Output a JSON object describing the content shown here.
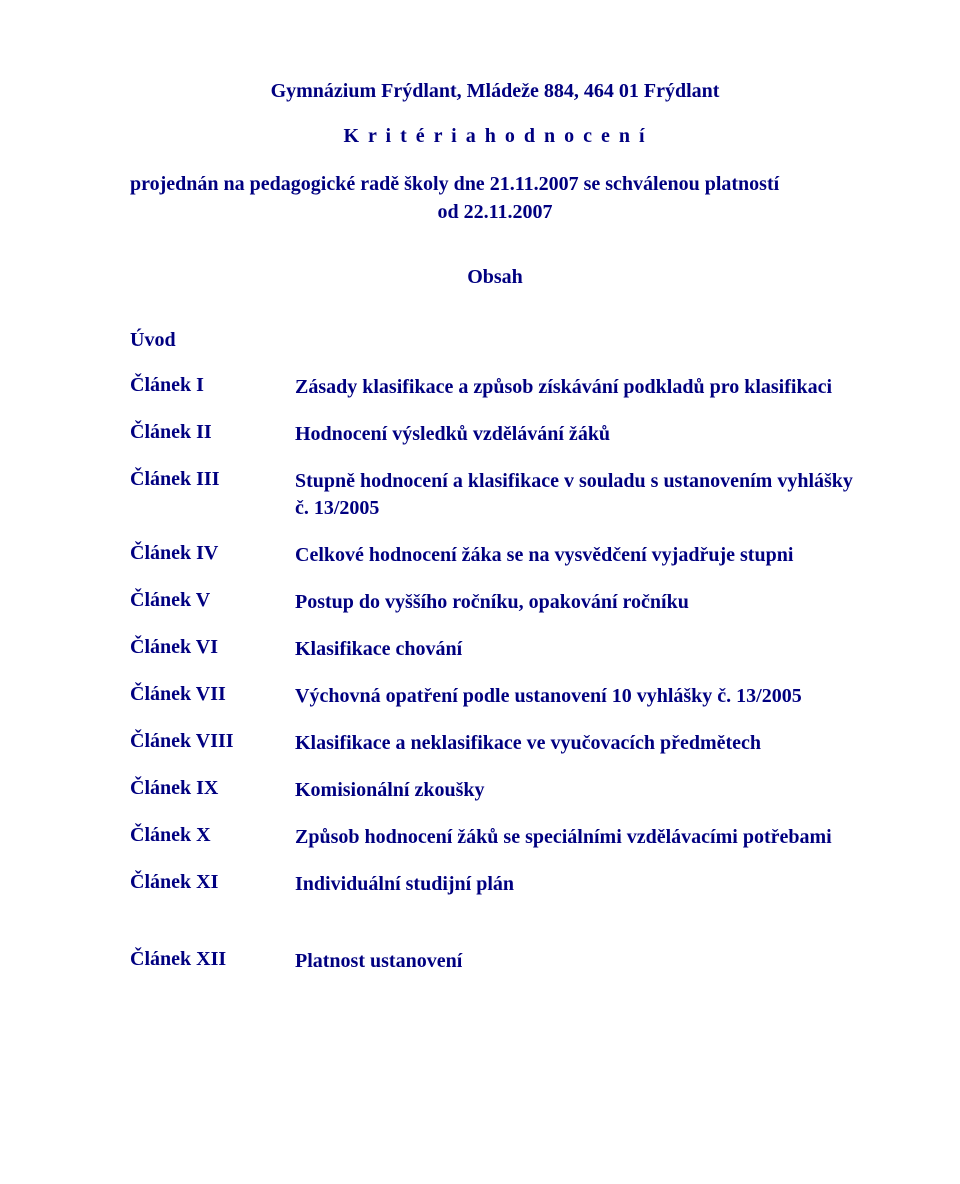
{
  "header": {
    "org_name": "Gymnázium Frýdlant, Mládeže 884, 464 01 Frýdlant",
    "doc_title": "K r i t é r i a   h o d n o c e n í",
    "approval_text": "projednán na pedagogické radě školy dne  21.11.2007  se schválenou platností",
    "approval_text2": "od 22.11.2007"
  },
  "obsah_label": "Obsah",
  "toc": {
    "uvod": "Úvod",
    "items": [
      {
        "label": "Článek I",
        "desc": "Zásady klasifikace a způsob získávání podkladů pro klasifikaci"
      },
      {
        "label": "Článek II",
        "desc": "Hodnocení výsledků vzdělávání žáků"
      },
      {
        "label": "Článek III",
        "desc": "Stupně hodnocení a klasifikace  v souladu s ustanovením  vyhlášky č. 13/2005"
      },
      {
        "label": "Článek IV",
        "desc": "Celkové hodnocení žáka se na vysvědčení vyjadřuje stupni"
      },
      {
        "label": "Článek V",
        "desc": "Postup do vyššího ročníku, opakování ročníku"
      },
      {
        "label": "Článek VI",
        "desc": "Klasifikace chování"
      },
      {
        "label": "Článek VII",
        "desc": "Výchovná opatření podle ustanovení 10 vyhlášky č. 13/2005"
      },
      {
        "label": "Článek VIII",
        "desc": "Klasifikace a neklasifikace ve vyučovacích předmětech"
      },
      {
        "label": "Článek IX",
        "desc": "Komisionální zkoušky"
      },
      {
        "label": "Článek X",
        "desc": "Způsob hodnocení žáků se speciálními vzdělávacími potřebami"
      },
      {
        "label": "Článek XI",
        "desc": "Individuální studijní plán"
      },
      {
        "label": "Článek XII",
        "desc": "Platnost ustanovení"
      }
    ]
  },
  "style": {
    "text_color": "#000080",
    "background_color": "#ffffff",
    "font_family": "Times New Roman",
    "base_font_size": 20,
    "font_weight": "bold"
  }
}
